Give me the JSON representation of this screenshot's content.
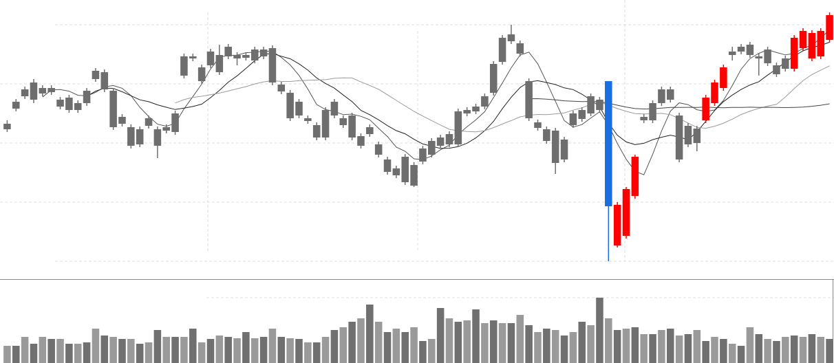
{
  "chart_data": {
    "type": "candlestick",
    "open": [
      212,
      242,
      260,
      255,
      264,
      266,
      245,
      240,
      240,
      250,
      285,
      270,
      215,
      220,
      188,
      190,
      217,
      188,
      210,
      208,
      290,
      315,
      282,
      305,
      295,
      318,
      315,
      316,
      312,
      318,
      280,
      267,
      228,
      232,
      224,
      200,
      200,
      232,
      218,
      200,
      188,
      205,
      175,
      150,
      145,
      135,
      130,
      165,
      175,
      188,
      190,
      190,
      235,
      238,
      245,
      265,
      310,
      340,
      322,
      228,
      214,
      195,
      163,
      168,
      218,
      227,
      235,
      240,
      282,
      43,
      57,
      115,
      225,
      225,
      250,
      255,
      168,
      190,
      192,
      225,
      250,
      272,
      320,
      325,
      320,
      315,
      308,
      292,
      300,
      300,
      330,
      315,
      318,
      342
    ],
    "high": [
      225,
      256,
      274,
      285,
      276,
      276,
      259,
      262,
      254,
      272,
      301,
      299,
      272,
      234,
      219,
      216,
      232,
      216,
      219,
      239,
      322,
      322,
      306,
      329,
      335,
      336,
      324,
      324,
      332,
      332,
      334,
      281,
      269,
      256,
      232,
      222,
      244,
      256,
      232,
      236,
      206,
      219,
      194,
      172,
      159,
      176,
      164,
      188,
      199,
      204,
      209,
      242,
      244,
      249,
      264,
      311,
      349,
      364,
      341,
      286,
      226,
      216,
      214,
      201,
      239,
      244,
      264,
      259,
      282,
      106,
      128,
      175,
      234,
      254,
      274,
      274,
      236,
      221,
      217,
      262,
      284,
      306,
      332,
      336,
      339,
      322,
      332,
      309,
      319,
      349,
      359,
      356,
      359,
      382
    ],
    "low": [
      208,
      238,
      256,
      250,
      260,
      262,
      241,
      236,
      236,
      246,
      281,
      266,
      211,
      216,
      184,
      186,
      213,
      170,
      206,
      204,
      286,
      311,
      278,
      301,
      291,
      314,
      305,
      312,
      308,
      314,
      276,
      263,
      224,
      228,
      220,
      196,
      196,
      228,
      214,
      196,
      184,
      201,
      171,
      146,
      141,
      131,
      128,
      161,
      171,
      184,
      186,
      186,
      231,
      234,
      241,
      261,
      306,
      336,
      318,
      224,
      210,
      191,
      147,
      164,
      214,
      223,
      231,
      236,
      20,
      40,
      53,
      111,
      221,
      221,
      246,
      251,
      164,
      186,
      180,
      221,
      246,
      268,
      312,
      321,
      316,
      290,
      304,
      288,
      296,
      296,
      326,
      311,
      314,
      338
    ],
    "close": [
      220,
      252,
      270,
      280,
      272,
      272,
      255,
      258,
      250,
      268,
      297,
      295,
      268,
      230,
      215,
      212,
      228,
      212,
      215,
      235,
      318,
      318,
      302,
      325,
      320,
      332,
      320,
      320,
      328,
      328,
      330,
      277,
      265,
      252,
      228,
      218,
      240,
      252,
      228,
      232,
      202,
      215,
      190,
      168,
      155,
      172,
      160,
      184,
      195,
      200,
      205,
      238,
      240,
      245,
      260,
      307,
      345,
      350,
      337,
      282,
      222,
      212,
      210,
      197,
      235,
      240,
      260,
      255,
      100,
      102,
      125,
      172,
      230,
      250,
      270,
      270,
      232,
      217,
      213,
      258,
      280,
      302,
      325,
      332,
      335,
      318,
      328,
      305,
      315,
      345,
      355,
      352,
      355,
      378
    ],
    "colors": [
      "#6e6e6e",
      "#6e6e6e",
      "#6e6e6e",
      "#6e6e6e",
      "#6e6e6e",
      "#6e6e6e",
      "#6e6e6e",
      "#6e6e6e",
      "#6e6e6e",
      "#6e6e6e",
      "#6e6e6e",
      "#6e6e6e",
      "#6e6e6e",
      "#6e6e6e",
      "#6e6e6e",
      "#6e6e6e",
      "#6e6e6e",
      "#6e6e6e",
      "#6e6e6e",
      "#6e6e6e",
      "#6e6e6e",
      "#6e6e6e",
      "#6e6e6e",
      "#6e6e6e",
      "#6e6e6e",
      "#6e6e6e",
      "#6e6e6e",
      "#6e6e6e",
      "#6e6e6e",
      "#6e6e6e",
      "#6e6e6e",
      "#6e6e6e",
      "#6e6e6e",
      "#6e6e6e",
      "#6e6e6e",
      "#6e6e6e",
      "#6e6e6e",
      "#6e6e6e",
      "#6e6e6e",
      "#6e6e6e",
      "#6e6e6e",
      "#6e6e6e",
      "#6e6e6e",
      "#6e6e6e",
      "#6e6e6e",
      "#6e6e6e",
      "#6e6e6e",
      "#6e6e6e",
      "#6e6e6e",
      "#6e6e6e",
      "#6e6e6e",
      "#6e6e6e",
      "#6e6e6e",
      "#6e6e6e",
      "#6e6e6e",
      "#6e6e6e",
      "#6e6e6e",
      "#6e6e6e",
      "#6e6e6e",
      "#6e6e6e",
      "#6e6e6e",
      "#6e6e6e",
      "#6e6e6e",
      "#6e6e6e",
      "#6e6e6e",
      "#6e6e6e",
      "#6e6e6e",
      "#6e6e6e",
      "#1a6fe0",
      "#ff0000",
      "#ff0000",
      "#ff0000",
      "#6e6e6e",
      "#6e6e6e",
      "#6e6e6e",
      "#6e6e6e",
      "#6e6e6e",
      "#6e6e6e",
      "#6e6e6e",
      "#ff0000",
      "#ff0000",
      "#ff0000",
      "#6e6e6e",
      "#6e6e6e",
      "#6e6e6e",
      "#6e6e6e",
      "#6e6e6e",
      "#6e6e6e",
      "#6e6e6e",
      "#ff0000",
      "#ff0000",
      "#ff0000",
      "#ff0000",
      "#ff0000"
    ],
    "ylim": [
      0,
      400
    ],
    "moving_averages": [
      {
        "period": 5,
        "color": "#555555"
      },
      {
        "period": 10,
        "color": "#222222"
      },
      {
        "period": 20,
        "color": "#9a9a9a"
      },
      {
        "period": 60,
        "color": "#444444"
      }
    ],
    "volume": [
      25,
      25,
      38,
      28,
      38,
      35,
      35,
      28,
      28,
      30,
      50,
      40,
      38,
      35,
      35,
      28,
      30,
      48,
      38,
      38,
      38,
      50,
      30,
      35,
      40,
      38,
      36,
      45,
      36,
      38,
      50,
      38,
      36,
      35,
      30,
      30,
      38,
      48,
      52,
      60,
      65,
      85,
      60,
      45,
      50,
      45,
      52,
      32,
      35,
      80,
      65,
      60,
      62,
      78,
      58,
      62,
      58,
      58,
      70,
      55,
      45,
      50,
      48,
      40,
      45,
      60,
      55,
      95,
      65,
      48,
      50,
      52,
      42,
      42,
      48,
      50,
      40,
      42,
      48,
      32,
      38,
      35,
      28,
      25,
      52,
      42,
      35,
      32,
      38,
      40,
      38,
      42,
      38,
      35
    ],
    "volume_colors": [
      "#9a9a9a",
      "#707070"
    ],
    "volume_ylim": [
      0,
      121
    ]
  }
}
